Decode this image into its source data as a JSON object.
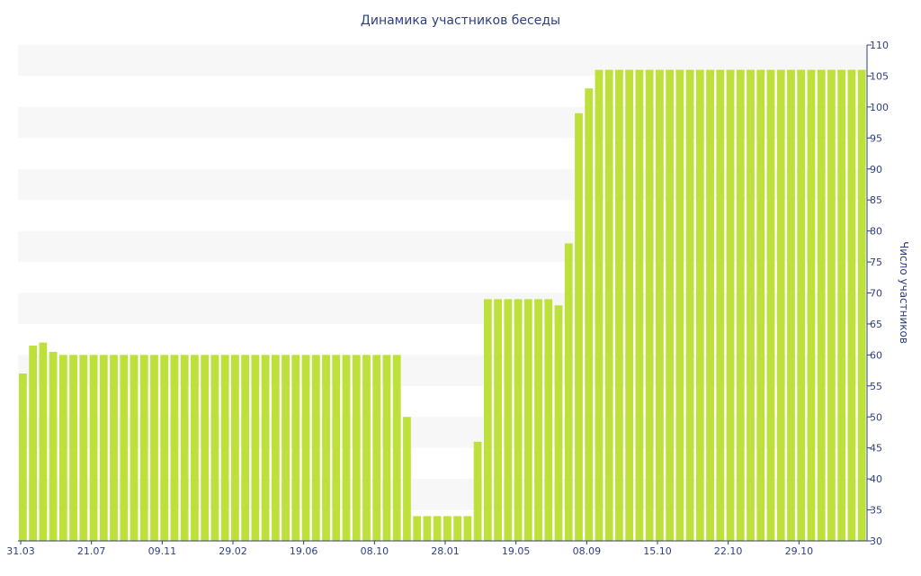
{
  "chart_data": {
    "type": "bar",
    "title": "Динамика участников беседы",
    "ylabel": "Число участников",
    "xlabel": "",
    "ylim": [
      30,
      110
    ],
    "y_ticks": [
      30,
      35,
      40,
      45,
      50,
      55,
      60,
      65,
      70,
      75,
      80,
      85,
      90,
      95,
      100,
      105,
      110
    ],
    "y_axis_side": "right",
    "grid": "alternating horizontal bands",
    "x_tick_labels": [
      "31.03",
      "21.07",
      "09.11",
      "29.02",
      "19.06",
      "08.10",
      "28.01",
      "19.05",
      "08.09",
      "15.10",
      "22.10",
      "29.10"
    ],
    "x_tick_bar_index": [
      0,
      7,
      14,
      21,
      28,
      35,
      42,
      49,
      56,
      63,
      70,
      77
    ],
    "bar_color": "#bde03a",
    "band_color": "#f7f7f7",
    "text_color": "#2f3f7f",
    "values": [
      57,
      61.5,
      62,
      60.5,
      60,
      60,
      60,
      60,
      60,
      60,
      60,
      60,
      60,
      60,
      60,
      60,
      60,
      60,
      60,
      60,
      60,
      60,
      60,
      60,
      60,
      60,
      60,
      60,
      60,
      60,
      60,
      60,
      60,
      60,
      60,
      60,
      60,
      60,
      50,
      34,
      34,
      34,
      34,
      34,
      34,
      46,
      69,
      69,
      69,
      69,
      69,
      69,
      69,
      68,
      78,
      99,
      103,
      106,
      106,
      106,
      106,
      106,
      106,
      106,
      106,
      106,
      106,
      106,
      106,
      106,
      106,
      106,
      106,
      106,
      106,
      106,
      106,
      106,
      106,
      106,
      106,
      106,
      106,
      106
    ]
  }
}
